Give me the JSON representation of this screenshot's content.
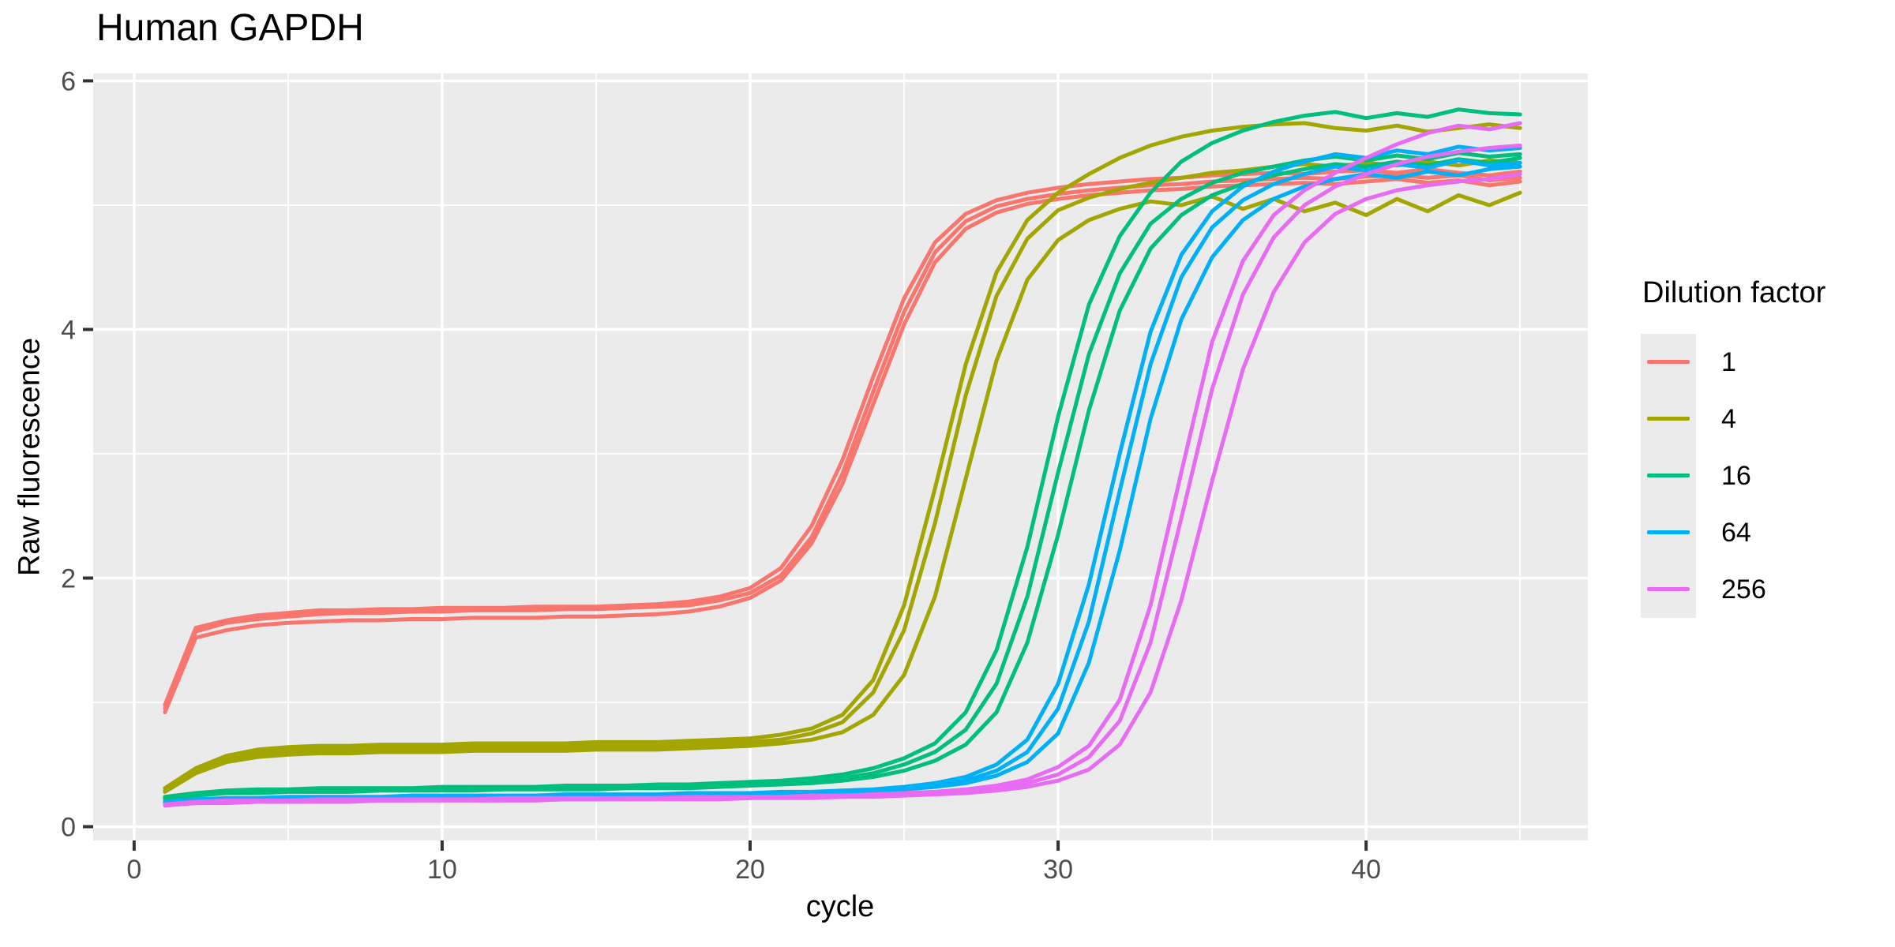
{
  "plot": {
    "title": "Human GAPDH",
    "x_axis_title": "cycle",
    "y_axis_title": "Raw fluorescence"
  },
  "style": {
    "panel_bg": "#EBEBEB",
    "grid_color": "#FFFFFF",
    "tick_mark_color": "#333333",
    "tick_label_color": "#4D4D4D",
    "text_color": "#000000"
  },
  "chart_data": {
    "type": "line",
    "title": "Human GAPDH",
    "xlabel": "cycle",
    "ylabel": "Raw fluorescence",
    "grid": "on (white major + minor on grey panel)",
    "x_axis": {
      "ticks": [
        0,
        10,
        20,
        30,
        40
      ],
      "minor_gridlines": [
        5,
        15,
        25,
        35,
        45
      ],
      "range_shown": [
        -1.33,
        47.2
      ]
    },
    "y_axis": {
      "ticks": [
        0,
        2,
        4,
        6
      ],
      "minor_gridlines": [
        1,
        3,
        5
      ],
      "range_shown": [
        -0.111,
        6.06
      ]
    },
    "legend": {
      "title": "Dilution factor",
      "position": "right",
      "entries": [
        {
          "label": "1",
          "color": "#F8766D"
        },
        {
          "label": "4",
          "color": "#A3A500"
        },
        {
          "label": "16",
          "color": "#00BF7D"
        },
        {
          "label": "64",
          "color": "#00B0F6"
        },
        {
          "label": "256",
          "color": "#E76BF3"
        }
      ]
    },
    "cycles": [
      1,
      2,
      3,
      4,
      5,
      6,
      7,
      8,
      9,
      10,
      11,
      12,
      13,
      14,
      15,
      16,
      17,
      18,
      19,
      20,
      21,
      22,
      23,
      24,
      25,
      26,
      27,
      28,
      29,
      30,
      31,
      32,
      33,
      34,
      35,
      36,
      37,
      38,
      39,
      40,
      41,
      42,
      43,
      44,
      45
    ],
    "series": [
      {
        "name": "dilution 1 rep 1",
        "dilution": "1",
        "replicate": 1,
        "color": "#F8766D",
        "values": [
          0.98,
          1.6,
          1.66,
          1.7,
          1.72,
          1.74,
          1.74,
          1.75,
          1.75,
          1.76,
          1.76,
          1.76,
          1.77,
          1.77,
          1.77,
          1.78,
          1.79,
          1.81,
          1.85,
          1.92,
          2.08,
          2.42,
          2.95,
          3.62,
          4.25,
          4.7,
          4.93,
          5.04,
          5.1,
          5.14,
          5.17,
          5.19,
          5.21,
          5.22,
          5.24,
          5.25,
          5.26,
          5.25,
          5.27,
          5.28,
          5.26,
          5.29,
          5.26,
          5.24,
          5.27
        ]
      },
      {
        "name": "dilution 1 rep 2",
        "dilution": "1",
        "replicate": 2,
        "color": "#F8766D",
        "values": [
          0.92,
          1.52,
          1.58,
          1.62,
          1.64,
          1.65,
          1.66,
          1.66,
          1.67,
          1.67,
          1.68,
          1.68,
          1.68,
          1.69,
          1.69,
          1.7,
          1.71,
          1.73,
          1.77,
          1.84,
          1.98,
          2.28,
          2.76,
          3.4,
          4.04,
          4.54,
          4.81,
          4.94,
          5.01,
          5.05,
          5.08,
          5.1,
          5.12,
          5.13,
          5.15,
          5.16,
          5.17,
          5.18,
          5.17,
          5.19,
          5.21,
          5.18,
          5.2,
          5.16,
          5.19
        ]
      },
      {
        "name": "dilution 1 rep 3",
        "dilution": "1",
        "replicate": 3,
        "color": "#F8766D",
        "values": [
          0.95,
          1.57,
          1.64,
          1.67,
          1.69,
          1.71,
          1.72,
          1.72,
          1.73,
          1.73,
          1.74,
          1.74,
          1.74,
          1.75,
          1.75,
          1.76,
          1.77,
          1.78,
          1.82,
          1.88,
          2.02,
          2.33,
          2.84,
          3.5,
          4.14,
          4.62,
          4.87,
          4.99,
          5.05,
          5.09,
          5.12,
          5.14,
          5.16,
          5.17,
          5.19,
          5.2,
          5.21,
          5.22,
          5.21,
          5.23,
          5.24,
          5.22,
          5.24,
          5.2,
          5.22
        ]
      },
      {
        "name": "dilution 4 rep 1",
        "dilution": "4",
        "replicate": 1,
        "color": "#A3A500",
        "values": [
          0.31,
          0.47,
          0.57,
          0.62,
          0.64,
          0.65,
          0.65,
          0.66,
          0.66,
          0.66,
          0.67,
          0.67,
          0.67,
          0.67,
          0.68,
          0.68,
          0.68,
          0.69,
          0.7,
          0.71,
          0.74,
          0.79,
          0.9,
          1.18,
          1.78,
          2.72,
          3.72,
          4.46,
          4.88,
          5.1,
          5.25,
          5.38,
          5.48,
          5.55,
          5.6,
          5.63,
          5.65,
          5.66,
          5.62,
          5.6,
          5.64,
          5.59,
          5.62,
          5.65,
          5.62
        ]
      },
      {
        "name": "dilution 4 rep 2",
        "dilution": "4",
        "replicate": 2,
        "color": "#A3A500",
        "values": [
          0.29,
          0.45,
          0.54,
          0.59,
          0.61,
          0.62,
          0.62,
          0.63,
          0.63,
          0.63,
          0.64,
          0.64,
          0.64,
          0.64,
          0.65,
          0.65,
          0.65,
          0.66,
          0.67,
          0.68,
          0.7,
          0.75,
          0.84,
          1.08,
          1.58,
          2.44,
          3.47,
          4.27,
          4.73,
          4.96,
          5.06,
          5.13,
          5.18,
          5.22,
          5.26,
          5.28,
          5.31,
          5.33,
          5.31,
          5.34,
          5.32,
          5.35,
          5.32,
          5.36,
          5.34
        ]
      },
      {
        "name": "dilution 4 rep 3",
        "dilution": "4",
        "replicate": 3,
        "color": "#A3A500",
        "values": [
          0.28,
          0.43,
          0.52,
          0.56,
          0.58,
          0.59,
          0.59,
          0.6,
          0.6,
          0.6,
          0.61,
          0.61,
          0.61,
          0.61,
          0.62,
          0.62,
          0.62,
          0.63,
          0.64,
          0.65,
          0.67,
          0.7,
          0.76,
          0.9,
          1.22,
          1.85,
          2.8,
          3.75,
          4.4,
          4.72,
          4.88,
          4.97,
          5.03,
          5.0,
          5.07,
          4.97,
          5.05,
          4.95,
          5.02,
          4.92,
          5.05,
          4.95,
          5.08,
          5.0,
          5.1
        ]
      },
      {
        "name": "dilution 16 rep 1",
        "dilution": "16",
        "replicate": 1,
        "color": "#00BF7D",
        "values": [
          0.24,
          0.27,
          0.29,
          0.3,
          0.3,
          0.31,
          0.31,
          0.31,
          0.31,
          0.32,
          0.32,
          0.32,
          0.32,
          0.33,
          0.33,
          0.33,
          0.34,
          0.34,
          0.35,
          0.36,
          0.37,
          0.39,
          0.42,
          0.47,
          0.55,
          0.67,
          0.92,
          1.42,
          2.25,
          3.3,
          4.2,
          4.75,
          5.1,
          5.35,
          5.5,
          5.6,
          5.67,
          5.72,
          5.75,
          5.7,
          5.74,
          5.71,
          5.77,
          5.74,
          5.73
        ]
      },
      {
        "name": "dilution 16 rep 2",
        "dilution": "16",
        "replicate": 2,
        "color": "#00BF7D",
        "values": [
          0.23,
          0.26,
          0.28,
          0.28,
          0.29,
          0.29,
          0.29,
          0.3,
          0.3,
          0.3,
          0.3,
          0.31,
          0.31,
          0.31,
          0.31,
          0.32,
          0.32,
          0.32,
          0.33,
          0.34,
          0.35,
          0.36,
          0.39,
          0.43,
          0.5,
          0.6,
          0.78,
          1.15,
          1.85,
          2.85,
          3.8,
          4.45,
          4.85,
          5.05,
          5.18,
          5.26,
          5.31,
          5.36,
          5.39,
          5.36,
          5.4,
          5.37,
          5.42,
          5.39,
          5.41
        ]
      },
      {
        "name": "dilution 16 rep 3",
        "dilution": "16",
        "replicate": 3,
        "color": "#00BF7D",
        "values": [
          0.22,
          0.25,
          0.27,
          0.27,
          0.28,
          0.28,
          0.28,
          0.29,
          0.29,
          0.29,
          0.29,
          0.3,
          0.3,
          0.3,
          0.3,
          0.31,
          0.31,
          0.31,
          0.32,
          0.33,
          0.34,
          0.35,
          0.37,
          0.4,
          0.45,
          0.53,
          0.66,
          0.92,
          1.48,
          2.35,
          3.35,
          4.15,
          4.65,
          4.92,
          5.08,
          5.17,
          5.24,
          5.29,
          5.33,
          5.31,
          5.35,
          5.32,
          5.37,
          5.34,
          5.38
        ]
      },
      {
        "name": "dilution 64 rep 1",
        "dilution": "64",
        "replicate": 1,
        "color": "#00B0F6",
        "values": [
          0.2,
          0.22,
          0.23,
          0.23,
          0.24,
          0.24,
          0.24,
          0.24,
          0.25,
          0.25,
          0.25,
          0.25,
          0.25,
          0.26,
          0.26,
          0.26,
          0.26,
          0.27,
          0.27,
          0.27,
          0.28,
          0.28,
          0.29,
          0.3,
          0.32,
          0.35,
          0.4,
          0.5,
          0.7,
          1.15,
          1.95,
          3.0,
          3.98,
          4.6,
          4.95,
          5.15,
          5.27,
          5.35,
          5.41,
          5.38,
          5.44,
          5.41,
          5.47,
          5.44,
          5.46
        ]
      },
      {
        "name": "dilution 64 rep 2",
        "dilution": "64",
        "replicate": 2,
        "color": "#00B0F6",
        "values": [
          0.19,
          0.21,
          0.22,
          0.22,
          0.23,
          0.23,
          0.23,
          0.23,
          0.24,
          0.24,
          0.24,
          0.24,
          0.24,
          0.25,
          0.25,
          0.25,
          0.25,
          0.26,
          0.26,
          0.26,
          0.27,
          0.27,
          0.28,
          0.29,
          0.31,
          0.33,
          0.37,
          0.45,
          0.6,
          0.95,
          1.65,
          2.7,
          3.72,
          4.42,
          4.82,
          5.04,
          5.17,
          5.25,
          5.31,
          5.28,
          5.33,
          5.3,
          5.36,
          5.32,
          5.34
        ]
      },
      {
        "name": "dilution 64 rep 3",
        "dilution": "64",
        "replicate": 3,
        "color": "#00B0F6",
        "values": [
          0.19,
          0.21,
          0.22,
          0.22,
          0.22,
          0.23,
          0.23,
          0.23,
          0.23,
          0.23,
          0.24,
          0.24,
          0.24,
          0.24,
          0.24,
          0.25,
          0.25,
          0.25,
          0.25,
          0.26,
          0.26,
          0.27,
          0.27,
          0.28,
          0.3,
          0.32,
          0.35,
          0.41,
          0.52,
          0.75,
          1.32,
          2.22,
          3.28,
          4.08,
          4.58,
          4.88,
          5.05,
          5.15,
          5.21,
          5.25,
          5.22,
          5.27,
          5.24,
          5.29,
          5.31
        ]
      },
      {
        "name": "dilution 256 rep 1",
        "dilution": "256",
        "replicate": 1,
        "color": "#E76BF3",
        "values": [
          0.18,
          0.2,
          0.21,
          0.21,
          0.21,
          0.22,
          0.22,
          0.22,
          0.22,
          0.22,
          0.22,
          0.23,
          0.23,
          0.23,
          0.23,
          0.23,
          0.23,
          0.24,
          0.24,
          0.24,
          0.24,
          0.25,
          0.25,
          0.26,
          0.27,
          0.28,
          0.3,
          0.33,
          0.38,
          0.48,
          0.65,
          1.02,
          1.78,
          2.85,
          3.9,
          4.55,
          4.92,
          5.12,
          5.26,
          5.38,
          5.49,
          5.58,
          5.64,
          5.61,
          5.66
        ]
      },
      {
        "name": "dilution 256 rep 2",
        "dilution": "256",
        "replicate": 2,
        "color": "#E76BF3",
        "values": [
          0.18,
          0.19,
          0.2,
          0.2,
          0.21,
          0.21,
          0.21,
          0.21,
          0.21,
          0.22,
          0.22,
          0.22,
          0.22,
          0.22,
          0.22,
          0.23,
          0.23,
          0.23,
          0.23,
          0.23,
          0.24,
          0.24,
          0.24,
          0.25,
          0.26,
          0.27,
          0.28,
          0.31,
          0.35,
          0.42,
          0.56,
          0.85,
          1.48,
          2.48,
          3.52,
          4.28,
          4.74,
          5.0,
          5.15,
          5.25,
          5.33,
          5.39,
          5.43,
          5.46,
          5.48
        ]
      },
      {
        "name": "dilution 256 rep 3",
        "dilution": "256",
        "replicate": 3,
        "color": "#E76BF3",
        "values": [
          0.17,
          0.19,
          0.19,
          0.2,
          0.2,
          0.2,
          0.2,
          0.21,
          0.21,
          0.21,
          0.21,
          0.21,
          0.21,
          0.22,
          0.22,
          0.22,
          0.22,
          0.22,
          0.22,
          0.23,
          0.23,
          0.23,
          0.24,
          0.24,
          0.25,
          0.26,
          0.27,
          0.29,
          0.32,
          0.37,
          0.46,
          0.66,
          1.08,
          1.82,
          2.78,
          3.68,
          4.3,
          4.7,
          4.93,
          5.05,
          5.12,
          5.16,
          5.19,
          5.21,
          5.25
        ]
      }
    ]
  }
}
